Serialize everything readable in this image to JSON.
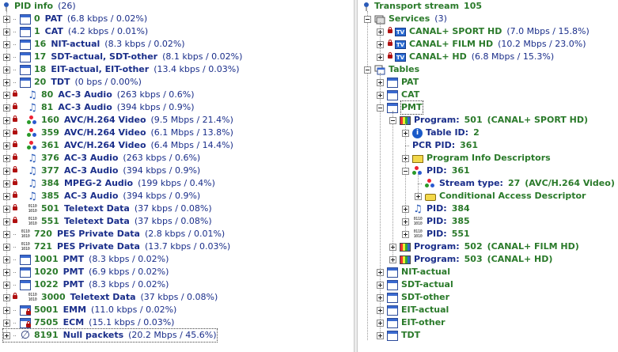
{
  "left": {
    "title": "PID info",
    "count": "(26)",
    "items": [
      {
        "pid": "0",
        "name": "PAT",
        "stat": "(6.8 kbps / 0.02%)",
        "icon": "table-icon",
        "lock": false
      },
      {
        "pid": "1",
        "name": "CAT",
        "stat": "(4.2 kbps / 0.01%)",
        "icon": "table-icon",
        "lock": false
      },
      {
        "pid": "16",
        "name": "NIT-actual",
        "stat": "(8.3 kbps / 0.02%)",
        "icon": "table-icon",
        "lock": false
      },
      {
        "pid": "17",
        "name": "SDT-actual, SDT-other",
        "stat": "(8.1 kbps / 0.02%)",
        "icon": "table-icon",
        "lock": false
      },
      {
        "pid": "18",
        "name": "EIT-actual, EIT-other",
        "stat": "(13.4 kbps / 0.03%)",
        "icon": "table-icon",
        "lock": false
      },
      {
        "pid": "20",
        "name": "TDT",
        "stat": "(0 bps / 0.00%)",
        "icon": "table-icon",
        "lock": false
      },
      {
        "pid": "80",
        "name": "AC-3 Audio",
        "stat": "(263 kbps / 0.6%)",
        "icon": "audio-icon",
        "lock": true
      },
      {
        "pid": "81",
        "name": "AC-3 Audio",
        "stat": "(394 kbps / 0.9%)",
        "icon": "audio-icon",
        "lock": true
      },
      {
        "pid": "160",
        "name": "AVC/H.264 Video",
        "stat": "(9.5 Mbps / 21.4%)",
        "icon": "video-icon",
        "lock": true
      },
      {
        "pid": "359",
        "name": "AVC/H.264 Video",
        "stat": "(6.1 Mbps / 13.8%)",
        "icon": "video-icon",
        "lock": true
      },
      {
        "pid": "361",
        "name": "AVC/H.264 Video",
        "stat": "(6.4 Mbps / 14.4%)",
        "icon": "video-icon",
        "lock": true
      },
      {
        "pid": "376",
        "name": "AC-3 Audio",
        "stat": "(263 kbps / 0.6%)",
        "icon": "audio-icon",
        "lock": true
      },
      {
        "pid": "377",
        "name": "AC-3 Audio",
        "stat": "(394 kbps / 0.9%)",
        "icon": "audio-icon",
        "lock": true
      },
      {
        "pid": "384",
        "name": "MPEG-2 Audio",
        "stat": "(199 kbps / 0.4%)",
        "icon": "audio-icon",
        "lock": true
      },
      {
        "pid": "385",
        "name": "AC-3 Audio",
        "stat": "(394 kbps / 0.9%)",
        "icon": "audio-icon",
        "lock": true
      },
      {
        "pid": "501",
        "name": "Teletext Data",
        "stat": "(37 kbps / 0.08%)",
        "icon": "binary-icon",
        "lock": true
      },
      {
        "pid": "551",
        "name": "Teletext Data",
        "stat": "(37 kbps / 0.08%)",
        "icon": "binary-icon",
        "lock": true
      },
      {
        "pid": "720",
        "name": "PES Private Data",
        "stat": "(2.8 kbps / 0.01%)",
        "icon": "binary-icon",
        "lock": false
      },
      {
        "pid": "721",
        "name": "PES Private Data",
        "stat": "(13.7 kbps / 0.03%)",
        "icon": "binary-icon",
        "lock": false
      },
      {
        "pid": "1001",
        "name": "PMT",
        "stat": "(8.3 kbps / 0.02%)",
        "icon": "table-icon",
        "lock": false
      },
      {
        "pid": "1020",
        "name": "PMT",
        "stat": "(6.9 kbps / 0.02%)",
        "icon": "table-icon",
        "lock": false
      },
      {
        "pid": "1022",
        "name": "PMT",
        "stat": "(8.3 kbps / 0.02%)",
        "icon": "table-icon",
        "lock": false
      },
      {
        "pid": "3000",
        "name": "Teletext Data",
        "stat": "(37 kbps / 0.08%)",
        "icon": "binary-icon",
        "lock": true
      },
      {
        "pid": "5001",
        "name": "EMM",
        "stat": "(11.0 kbps / 0.02%)",
        "icon": "locked-table-icon",
        "lock": false
      },
      {
        "pid": "7505",
        "name": "ECM",
        "stat": "(15.1 kbps / 0.03%)",
        "icon": "locked-table-icon",
        "lock": false
      },
      {
        "pid": "8191",
        "name": "Null packets",
        "stat": "(20.2 Mbps / 45.6%)",
        "icon": "null-icon",
        "lock": false
      }
    ]
  },
  "right": {
    "title": "Transport stream",
    "ts_id": "105",
    "services": {
      "label": "Services",
      "count": "(3)",
      "items": [
        {
          "name": "CANAL+ SPORT HD",
          "stat": "(7.0 Mbps / 15.8%)"
        },
        {
          "name": "CANAL+ FILM HD",
          "stat": "(10.2 Mbps / 23.0%)"
        },
        {
          "name": "CANAL+ HD",
          "stat": "(6.8 Mbps / 15.3%)"
        }
      ]
    },
    "tables": {
      "label": "Tables",
      "pat": "PAT",
      "cat": "CAT",
      "pmt": "PMT",
      "program_label": "Program:",
      "programs": [
        {
          "num": "501",
          "name": "(CANAL+ SPORT HD)"
        },
        {
          "num": "502",
          "name": "(CANAL+ FILM HD)"
        },
        {
          "num": "503",
          "name": "(CANAL+ HD)"
        }
      ],
      "table_id_label": "Table ID:",
      "table_id": "2",
      "pcr_label": "PCR PID:",
      "pcr_pid": "361",
      "pid_label": "PID:",
      "pid_video": "361",
      "stream_type_label": "Stream type:",
      "stream_type_value": "27",
      "stream_type_name": "(AVC/H.264 Video)",
      "program_info_desc": "Program Info Descriptors",
      "cond_access_desc": "Conditional Access Descriptor",
      "pid_a1": "384",
      "pid_a2": "385",
      "pid_a3": "551",
      "others": [
        "NIT-actual",
        "SDT-actual",
        "SDT-other",
        "EIT-actual",
        "EIT-other",
        "TDT"
      ]
    }
  },
  "colors": {
    "pid_green": "#2a7a2a",
    "label_blue": "#1a2e8a",
    "lock_red": "#b01010"
  }
}
